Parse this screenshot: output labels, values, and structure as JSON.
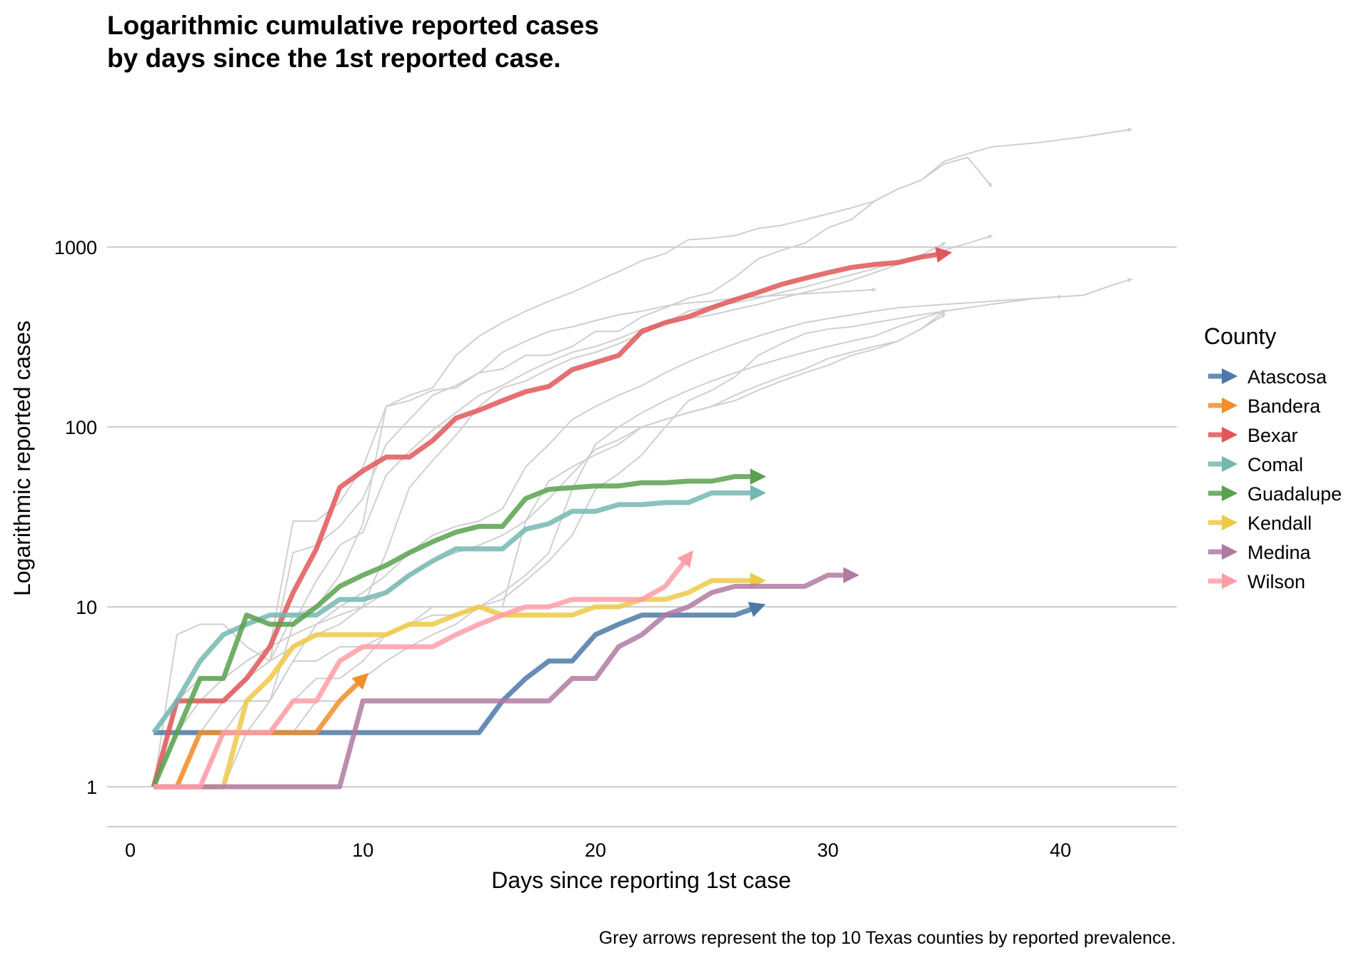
{
  "chart_data": {
    "type": "line",
    "title_line1": "Logarithmic cumulative reported cases",
    "title_line2": "by days since the 1st reported case.",
    "xlabel": "Days since reporting 1st case",
    "ylabel": "Logarithmic reported cases",
    "caption": "Grey arrows represent the top 10 Texas counties by reported prevalence.",
    "y_scale": "log10",
    "xlim": [
      -1,
      45
    ],
    "ylim": [
      0.6,
      6000
    ],
    "x_ticks": [
      0,
      10,
      20,
      30,
      40
    ],
    "x_tick_labels": [
      "0",
      "10",
      "20",
      "30",
      "40"
    ],
    "y_ticks": [
      1,
      10,
      100,
      1000
    ],
    "y_tick_labels": [
      "1",
      "10",
      "100",
      "1000"
    ],
    "grid": {
      "horizontal": true,
      "vertical": false
    },
    "legend": {
      "title": "County",
      "position": "right"
    },
    "series": [
      {
        "name": "Atascosa",
        "color": "#4e79a7",
        "x": [
          1,
          2,
          3,
          4,
          5,
          6,
          7,
          8,
          9,
          10,
          11,
          12,
          13,
          14,
          15,
          16,
          17,
          18,
          19,
          20,
          21,
          22,
          23,
          24,
          25,
          26,
          27
        ],
        "y": [
          2,
          2,
          2,
          2,
          2,
          2,
          2,
          2,
          2,
          2,
          2,
          2,
          2,
          2,
          2,
          3,
          4,
          5,
          5,
          7,
          8,
          9,
          9,
          9,
          9,
          9,
          10
        ]
      },
      {
        "name": "Bandera",
        "color": "#f28e2b",
        "x": [
          1,
          2,
          3,
          4,
          5,
          6,
          7,
          8,
          9,
          10
        ],
        "y": [
          1,
          1,
          2,
          2,
          2,
          2,
          2,
          2,
          3,
          4
        ]
      },
      {
        "name": "Bexar",
        "color": "#e15759",
        "x": [
          1,
          2,
          3,
          4,
          5,
          6,
          7,
          8,
          9,
          10,
          11,
          12,
          13,
          14,
          15,
          16,
          17,
          18,
          19,
          20,
          21,
          22,
          23,
          24,
          25,
          26,
          27,
          28,
          29,
          30,
          31,
          32,
          33,
          34,
          35
        ],
        "y": [
          1,
          3,
          3,
          3,
          4,
          6,
          12,
          21,
          46,
          57,
          68,
          68,
          84,
          112,
          124,
          140,
          157,
          168,
          208,
          228,
          250,
          340,
          380,
          410,
          460,
          510,
          560,
          620,
          670,
          720,
          770,
          800,
          820,
          880,
          920
        ]
      },
      {
        "name": "Comal",
        "color": "#76b7b2",
        "x": [
          1,
          2,
          3,
          4,
          5,
          6,
          7,
          8,
          9,
          10,
          11,
          12,
          13,
          14,
          15,
          16,
          17,
          18,
          19,
          20,
          21,
          22,
          23,
          24,
          25,
          26,
          27
        ],
        "y": [
          2,
          3,
          5,
          7,
          8,
          9,
          9,
          9,
          11,
          11,
          12,
          15,
          18,
          21,
          21,
          21,
          27,
          29,
          34,
          34,
          37,
          37,
          38,
          38,
          43,
          43,
          43
        ]
      },
      {
        "name": "Guadalupe",
        "color": "#59a14f",
        "x": [
          1,
          2,
          3,
          4,
          5,
          6,
          7,
          8,
          9,
          10,
          11,
          12,
          13,
          14,
          15,
          16,
          17,
          18,
          19,
          20,
          21,
          22,
          23,
          24,
          25,
          26,
          27
        ],
        "y": [
          1,
          2,
          4,
          4,
          9,
          8,
          8,
          10,
          13,
          15,
          17,
          20,
          23,
          26,
          28,
          28,
          40,
          45,
          46,
          47,
          47,
          49,
          49,
          50,
          50,
          53,
          53
        ]
      },
      {
        "name": "Kendall",
        "color": "#edc948",
        "x": [
          1,
          2,
          3,
          4,
          5,
          6,
          7,
          8,
          9,
          10,
          11,
          12,
          13,
          14,
          15,
          16,
          17,
          18,
          19,
          20,
          21,
          22,
          23,
          24,
          25,
          26,
          27
        ],
        "y": [
          1,
          1,
          1,
          1,
          3,
          4,
          6,
          7,
          7,
          7,
          7,
          8,
          8,
          9,
          10,
          9,
          9,
          9,
          9,
          10,
          10,
          11,
          11,
          12,
          14,
          14,
          14
        ]
      },
      {
        "name": "Medina",
        "color": "#b07aa1",
        "x": [
          1,
          2,
          3,
          4,
          5,
          6,
          7,
          8,
          9,
          10,
          11,
          12,
          13,
          14,
          15,
          16,
          17,
          18,
          19,
          20,
          21,
          22,
          23,
          24,
          25,
          26,
          27,
          28,
          29,
          30,
          31
        ],
        "y": [
          1,
          1,
          1,
          1,
          1,
          1,
          1,
          1,
          1,
          3,
          3,
          3,
          3,
          3,
          3,
          3,
          3,
          3,
          4,
          4,
          6,
          7,
          9,
          10,
          12,
          13,
          13,
          13,
          13,
          15,
          15
        ]
      },
      {
        "name": "Wilson",
        "color": "#ff9da7",
        "x": [
          1,
          2,
          3,
          4,
          5,
          6,
          7,
          8,
          9,
          10,
          11,
          12,
          13,
          14,
          15,
          16,
          17,
          18,
          19,
          20,
          21,
          22,
          23,
          24
        ],
        "y": [
          1,
          1,
          1,
          2,
          2,
          2,
          3,
          3,
          5,
          6,
          6,
          6,
          6,
          7,
          8,
          9,
          10,
          10,
          11,
          11,
          11,
          11,
          13,
          19
        ]
      }
    ],
    "background_series": [
      {
        "x": [
          1,
          2,
          3,
          4,
          5,
          6,
          7,
          8,
          9,
          10,
          11,
          12,
          13,
          14,
          15,
          16,
          17,
          18,
          19,
          20,
          21,
          22,
          23,
          24,
          25,
          26,
          27,
          28,
          29,
          30,
          31,
          32,
          33,
          34,
          35,
          36,
          37,
          38,
          39,
          40,
          41,
          42,
          43
        ],
        "y": [
          1,
          3,
          3,
          4,
          5,
          6,
          30,
          30,
          38,
          60,
          130,
          150,
          165,
          250,
          320,
          380,
          440,
          500,
          560,
          640,
          730,
          840,
          920,
          1100,
          1120,
          1160,
          1270,
          1320,
          1420,
          1530,
          1650,
          1800,
          2100,
          2350,
          3000,
          3300,
          3600,
          3700,
          3800,
          3950,
          4100,
          4300,
          4500
        ]
      },
      {
        "x": [
          1,
          2,
          3,
          4,
          5,
          6,
          7,
          8,
          9,
          10,
          11,
          12,
          13,
          14,
          15,
          16,
          17,
          18,
          19,
          20,
          21,
          22,
          23,
          24,
          25,
          26,
          27,
          28,
          29,
          30,
          31,
          32,
          33,
          34,
          35,
          36,
          37
        ],
        "y": [
          1,
          2,
          3,
          3,
          4,
          5,
          20,
          22,
          28,
          40,
          80,
          110,
          150,
          170,
          200,
          210,
          250,
          250,
          280,
          340,
          340,
          410,
          460,
          520,
          560,
          680,
          860,
          960,
          1050,
          1280,
          1420,
          1800,
          2100,
          2350,
          2900,
          3150,
          2200
        ]
      },
      {
        "x": [
          1,
          2,
          3,
          4,
          5,
          6,
          7,
          8,
          9,
          10,
          11,
          12,
          13,
          14,
          15,
          16,
          17,
          18,
          19,
          20,
          21,
          22,
          23,
          24,
          25,
          26,
          27,
          28,
          29,
          30,
          31,
          32,
          33,
          34,
          35,
          36,
          37
        ],
        "y": [
          1,
          1,
          2,
          2,
          3,
          3,
          8,
          14,
          22,
          26,
          54,
          73,
          96,
          120,
          150,
          170,
          200,
          230,
          260,
          280,
          310,
          350,
          380,
          400,
          420,
          450,
          480,
          520,
          560,
          600,
          650,
          720,
          800,
          880,
          960,
          1050,
          1150
        ]
      },
      {
        "x": [
          1,
          2,
          3,
          4,
          5,
          6,
          7,
          8,
          9,
          10,
          11,
          12,
          13,
          14,
          15,
          16,
          17,
          18,
          19,
          20,
          21,
          22,
          23,
          24,
          25,
          26,
          27,
          28,
          29,
          30,
          31,
          32,
          33,
          34,
          35
        ],
        "y": [
          1,
          2,
          2,
          3,
          4,
          5,
          6,
          7,
          8,
          10,
          20,
          46,
          65,
          90,
          130,
          165,
          180,
          210,
          240,
          260,
          290,
          330,
          380,
          440,
          470,
          490,
          520,
          560,
          600,
          650,
          700,
          760,
          820,
          900,
          1050
        ]
      },
      {
        "x": [
          1,
          2,
          3,
          4,
          5,
          6,
          7,
          8,
          9,
          10,
          11,
          12,
          13,
          14,
          15,
          16,
          17,
          18,
          19,
          20,
          21,
          22,
          23,
          24,
          25,
          26,
          27,
          28,
          29,
          30,
          31,
          32
        ],
        "y": [
          1,
          7,
          8,
          8,
          6,
          5,
          9,
          10,
          15,
          29,
          130,
          140,
          160,
          165,
          200,
          260,
          300,
          340,
          360,
          390,
          420,
          440,
          470,
          490,
          500,
          520,
          530,
          540,
          550,
          560,
          570,
          580
        ]
      },
      {
        "x": [
          1,
          2,
          3,
          4,
          5,
          6,
          7,
          8,
          9,
          10,
          11,
          12,
          13,
          14,
          15,
          16,
          17,
          18,
          19,
          20,
          21,
          22,
          23,
          24,
          25,
          26,
          27,
          28,
          29,
          30,
          31,
          32,
          33,
          34,
          35,
          36,
          37,
          38,
          39,
          40,
          41,
          42,
          43
        ],
        "y": [
          1,
          2,
          3,
          3,
          3,
          3,
          5,
          5,
          6,
          6,
          7,
          8,
          10,
          10,
          10,
          11,
          14,
          18,
          25,
          45,
          55,
          70,
          100,
          140,
          160,
          190,
          250,
          290,
          330,
          350,
          360,
          380,
          400,
          420,
          440,
          460,
          480,
          500,
          520,
          530,
          540,
          600,
          660
        ]
      },
      {
        "x": [
          1,
          2,
          3,
          4,
          5,
          6,
          7,
          8,
          9,
          10,
          11,
          12,
          13,
          14,
          15,
          16,
          17,
          18,
          19,
          20,
          21,
          22,
          23,
          24,
          25,
          26,
          27,
          28,
          29,
          30,
          31,
          32,
          33,
          34,
          35,
          36,
          37,
          38,
          39,
          40
        ],
        "y": [
          1,
          1,
          2,
          2,
          2,
          3,
          5,
          8,
          10,
          12,
          15,
          20,
          25,
          28,
          30,
          35,
          60,
          80,
          110,
          130,
          150,
          170,
          200,
          230,
          260,
          290,
          320,
          350,
          380,
          400,
          420,
          440,
          460,
          470,
          480,
          490,
          500,
          510,
          520,
          530
        ]
      },
      {
        "x": [
          1,
          2,
          3,
          4,
          5,
          6,
          7,
          8,
          9,
          10,
          11,
          12,
          13,
          14,
          15,
          16,
          17,
          18,
          19,
          20,
          21,
          22,
          23,
          24,
          25,
          26,
          27,
          28,
          29,
          30,
          31,
          32,
          33,
          34,
          35
        ],
        "y": [
          1,
          1,
          1,
          2,
          2,
          2,
          3,
          4,
          4,
          5,
          7,
          8,
          9,
          9,
          10,
          12,
          15,
          20,
          45,
          80,
          100,
          120,
          140,
          160,
          180,
          200,
          220,
          240,
          260,
          280,
          300,
          320,
          360,
          400,
          440
        ]
      },
      {
        "x": [
          1,
          2,
          3,
          4,
          5,
          6,
          7,
          8,
          9,
          10,
          11,
          12,
          13,
          14,
          15,
          16,
          17,
          18,
          19,
          20,
          21,
          22,
          23,
          24,
          25,
          26,
          27,
          28,
          29,
          30,
          31,
          32,
          33,
          34,
          35
        ],
        "y": [
          2,
          3,
          4,
          4,
          5,
          6,
          7,
          8,
          9,
          10,
          12,
          15,
          18,
          20,
          22,
          25,
          30,
          40,
          55,
          75,
          85,
          100,
          110,
          120,
          130,
          150,
          170,
          190,
          210,
          240,
          260,
          280,
          300,
          350,
          440
        ]
      },
      {
        "x": [
          1,
          2,
          3,
          4,
          5,
          6,
          7,
          8,
          9,
          10,
          11,
          12,
          13,
          14,
          15,
          16,
          17,
          18,
          19,
          20,
          21,
          22,
          23,
          24,
          25,
          26,
          27,
          28,
          29,
          30,
          31,
          32,
          33,
          34,
          35
        ],
        "y": [
          1,
          1,
          1,
          1,
          2,
          2,
          2,
          3,
          3,
          4,
          5,
          6,
          7,
          8,
          10,
          10,
          30,
          50,
          60,
          70,
          80,
          100,
          110,
          120,
          130,
          140,
          160,
          180,
          200,
          220,
          250,
          270,
          300,
          350,
          420
        ]
      }
    ],
    "colors": {
      "grid": "#cccccc",
      "axis": "#cccccc",
      "background_series": "#cfcfcf"
    }
  }
}
